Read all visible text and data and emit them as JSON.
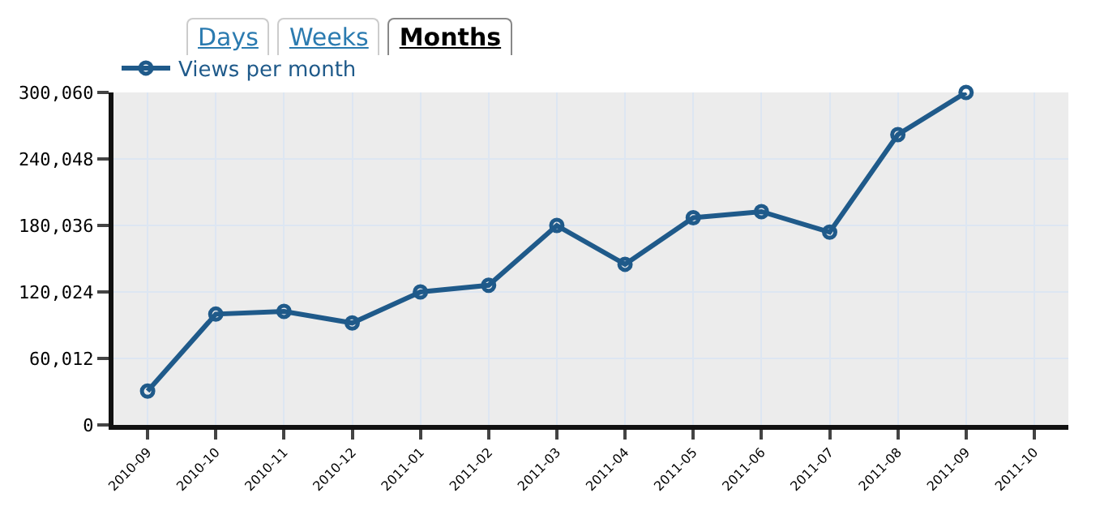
{
  "chart_data": {
    "type": "line",
    "categories": [
      "2010-09",
      "2010-10",
      "2010-11",
      "2010-12",
      "2011-01",
      "2011-02",
      "2011-03",
      "2011-04",
      "2011-05",
      "2011-06",
      "2011-07",
      "2011-08",
      "2011-09",
      "2011-10"
    ],
    "series": [
      {
        "name": "Views per month",
        "color": "#1f5a8a",
        "values": [
          30500,
          100000,
          102500,
          92000,
          120000,
          126000,
          180000,
          145000,
          187000,
          192500,
          174000,
          262000,
          300060,
          null
        ]
      }
    ],
    "ylim": [
      0,
      300060
    ],
    "yticks": [
      {
        "value": 0,
        "label": "0"
      },
      {
        "value": 60012,
        "label": "60,012"
      },
      {
        "value": 120024,
        "label": "120,024"
      },
      {
        "value": 180036,
        "label": "180,036"
      },
      {
        "value": 240048,
        "label": "240,048"
      },
      {
        "value": 300060,
        "label": "300,060"
      }
    ],
    "annotations": [
      "Days",
      "Weeks",
      "Months"
    ],
    "grid": true,
    "legend": "top left",
    "marker": "circle",
    "line_style": "solid"
  }
}
